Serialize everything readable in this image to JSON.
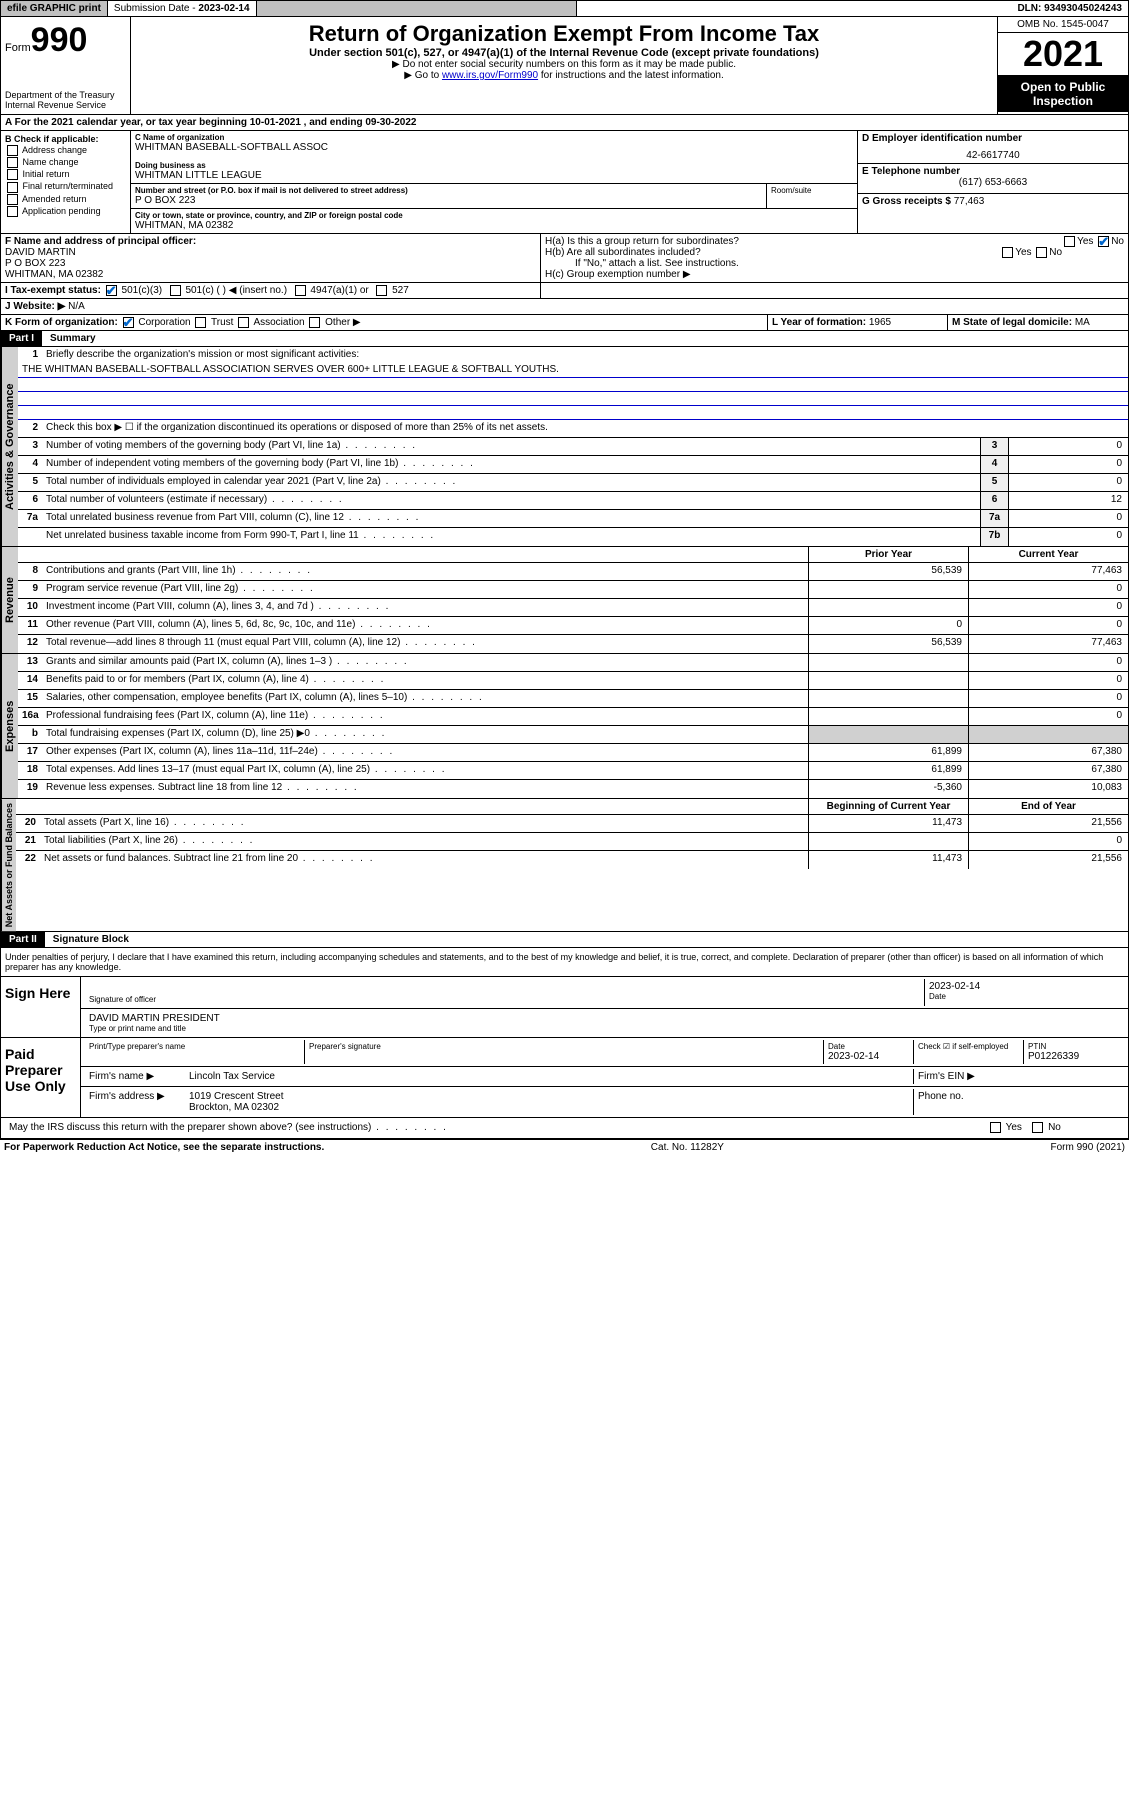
{
  "topbar": {
    "efile": "efile GRAPHIC print",
    "submission_label": "Submission Date - ",
    "submission_date": "2023-02-14",
    "dln_label": "DLN: ",
    "dln": "93493045024243"
  },
  "header": {
    "form_prefix": "Form",
    "form_num": "990",
    "dept": "Department of the Treasury",
    "irs": "Internal Revenue Service",
    "title": "Return of Organization Exempt From Income Tax",
    "sub": "Under section 501(c), 527, or 4947(a)(1) of the Internal Revenue Code (except private foundations)",
    "note1": "▶ Do not enter social security numbers on this form as it may be made public.",
    "note2_pre": "▶ Go to ",
    "note2_link": "www.irs.gov/Form990",
    "note2_post": " for instructions and the latest information.",
    "omb": "OMB No. 1545-0047",
    "year": "2021",
    "inspect": "Open to Public Inspection"
  },
  "sectA": {
    "text_pre": "A For the 2021 calendar year, or tax year beginning ",
    "begin": "10-01-2021",
    "text_mid": " , and ending ",
    "end": "09-30-2022"
  },
  "colB": {
    "label": "B Check if applicable:",
    "opts": [
      "Address change",
      "Name change",
      "Initial return",
      "Final return/terminated",
      "Amended return",
      "Application pending"
    ]
  },
  "orgblock": {
    "c_label": "C Name of organization",
    "org_name": "WHITMAN BASEBALL-SOFTBALL ASSOC",
    "dba_label": "Doing business as",
    "dba": "WHITMAN LITTLE LEAGUE",
    "addr_label": "Number and street (or P.O. box if mail is not delivered to street address)",
    "suite_label": "Room/suite",
    "street": "P O BOX 223",
    "city_label": "City or town, state or province, country, and ZIP or foreign postal code",
    "city": "WHITMAN, MA  02382"
  },
  "colD": {
    "d_label": "D Employer identification number",
    "ein": "42-6617740",
    "e_label": "E Telephone number",
    "phone": "(617) 653-6663",
    "g_label": "G Gross receipts $ ",
    "gross": "77,463"
  },
  "rowF": {
    "f_label": "F Name and address of principal officer:",
    "officer_name": "DAVID MARTIN",
    "officer_addr1": "P O BOX 223",
    "officer_addr2": "WHITMAN, MA  02382",
    "ha_label": "H(a)  Is this a group return for subordinates?",
    "hb_label": "H(b)  Are all subordinates included?",
    "h_note": "If \"No,\" attach a list. See instructions.",
    "hc_label": "H(c)  Group exemption number ▶",
    "yes": "Yes",
    "no": "No"
  },
  "rowI": {
    "label": "I    Tax-exempt status:",
    "o1": "501(c)(3)",
    "o2": "501(c) (   ) ◀ (insert no.)",
    "o3": "4947(a)(1) or",
    "o4": "527"
  },
  "rowJ": {
    "label": "J   Website: ▶",
    "val": "N/A"
  },
  "rowK": {
    "label": "K Form of organization:",
    "o1": "Corporation",
    "o2": "Trust",
    "o3": "Association",
    "o4": "Other ▶",
    "l_label": "L Year of formation: ",
    "l_val": "1965",
    "m_label": "M State of legal domicile: ",
    "m_val": "MA"
  },
  "part1": {
    "title": "Part I",
    "label": "Summary",
    "l1_label": "Briefly describe the organization's mission or most significant activities:",
    "l1_text": "THE WHITMAN BASEBALL-SOFTBALL ASSOCIATION SERVES OVER 600+ LITTLE LEAGUE & SOFTBALL YOUTHS.",
    "l2": "Check this box ▶ ☐  if the organization discontinued its operations or disposed of more than 25% of its net assets.",
    "lines_gov": [
      {
        "n": "3",
        "d": "Number of voting members of the governing body (Part VI, line 1a)",
        "b": "3",
        "v": "0"
      },
      {
        "n": "4",
        "d": "Number of independent voting members of the governing body (Part VI, line 1b)",
        "b": "4",
        "v": "0"
      },
      {
        "n": "5",
        "d": "Total number of individuals employed in calendar year 2021 (Part V, line 2a)",
        "b": "5",
        "v": "0"
      },
      {
        "n": "6",
        "d": "Total number of volunteers (estimate if necessary)",
        "b": "6",
        "v": "12"
      },
      {
        "n": "7a",
        "d": "Total unrelated business revenue from Part VIII, column (C), line 12",
        "b": "7a",
        "v": "0"
      },
      {
        "n": "",
        "d": "Net unrelated business taxable income from Form 990-T, Part I, line 11",
        "b": "7b",
        "v": "0"
      }
    ],
    "hdr_prior": "Prior Year",
    "hdr_curr": "Current Year",
    "lines_rev": [
      {
        "n": "8",
        "d": "Contributions and grants (Part VIII, line 1h)",
        "p": "56,539",
        "c": "77,463"
      },
      {
        "n": "9",
        "d": "Program service revenue (Part VIII, line 2g)",
        "p": "",
        "c": "0"
      },
      {
        "n": "10",
        "d": "Investment income (Part VIII, column (A), lines 3, 4, and 7d )",
        "p": "",
        "c": "0"
      },
      {
        "n": "11",
        "d": "Other revenue (Part VIII, column (A), lines 5, 6d, 8c, 9c, 10c, and 11e)",
        "p": "0",
        "c": "0"
      },
      {
        "n": "12",
        "d": "Total revenue—add lines 8 through 11 (must equal Part VIII, column (A), line 12)",
        "p": "56,539",
        "c": "77,463"
      }
    ],
    "lines_exp": [
      {
        "n": "13",
        "d": "Grants and similar amounts paid (Part IX, column (A), lines 1–3 )",
        "p": "",
        "c": "0"
      },
      {
        "n": "14",
        "d": "Benefits paid to or for members (Part IX, column (A), line 4)",
        "p": "",
        "c": "0"
      },
      {
        "n": "15",
        "d": "Salaries, other compensation, employee benefits (Part IX, column (A), lines 5–10)",
        "p": "",
        "c": "0"
      },
      {
        "n": "16a",
        "d": "Professional fundraising fees (Part IX, column (A), line 11e)",
        "p": "",
        "c": "0"
      },
      {
        "n": "b",
        "d": "Total fundraising expenses (Part IX, column (D), line 25) ▶0",
        "p": "SHADE",
        "c": "SHADE"
      },
      {
        "n": "17",
        "d": "Other expenses (Part IX, column (A), lines 11a–11d, 11f–24e)",
        "p": "61,899",
        "c": "67,380"
      },
      {
        "n": "18",
        "d": "Total expenses. Add lines 13–17 (must equal Part IX, column (A), line 25)",
        "p": "61,899",
        "c": "67,380"
      },
      {
        "n": "19",
        "d": "Revenue less expenses. Subtract line 18 from line 12",
        "p": "-5,360",
        "c": "10,083"
      }
    ],
    "hdr_begin": "Beginning of Current Year",
    "hdr_end": "End of Year",
    "lines_net": [
      {
        "n": "20",
        "d": "Total assets (Part X, line 16)",
        "p": "11,473",
        "c": "21,556"
      },
      {
        "n": "21",
        "d": "Total liabilities (Part X, line 26)",
        "p": "",
        "c": "0"
      },
      {
        "n": "22",
        "d": "Net assets or fund balances. Subtract line 21 from line 20",
        "p": "11,473",
        "c": "21,556"
      }
    ]
  },
  "part2": {
    "title": "Part II",
    "label": "Signature Block",
    "decl": "Under penalties of perjury, I declare that I have examined this return, including accompanying schedules and statements, and to the best of my knowledge and belief, it is true, correct, and complete. Declaration of preparer (other than officer) is based on all information of which preparer has any knowledge.",
    "sign_here": "Sign Here",
    "sig_officer": "Signature of officer",
    "sig_date_lbl": "Date",
    "sig_date": "2023-02-14",
    "officer": "DAVID MARTIN PRESIDENT",
    "officer_sub": "Type or print name and title",
    "paid": "Paid Preparer Use Only",
    "prep_name_lbl": "Print/Type preparer's name",
    "prep_sig_lbl": "Preparer's signature",
    "prep_date_lbl": "Date",
    "prep_date": "2023-02-14",
    "check_lbl": "Check ☑ if self-employed",
    "ptin_lbl": "PTIN",
    "ptin": "P01226339",
    "firm_name_lbl": "Firm's name    ▶",
    "firm_name": "Lincoln Tax Service",
    "firm_ein_lbl": "Firm's EIN ▶",
    "firm_addr_lbl": "Firm's address ▶",
    "firm_addr1": "1019 Crescent Street",
    "firm_addr2": "Brockton, MA  02302",
    "phone_lbl": "Phone no.",
    "discuss": "May the IRS discuss this return with the preparer shown above? (see instructions)"
  },
  "footer": {
    "left": "For Paperwork Reduction Act Notice, see the separate instructions.",
    "mid": "Cat. No. 11282Y",
    "right": "Form 990 (2021)"
  }
}
